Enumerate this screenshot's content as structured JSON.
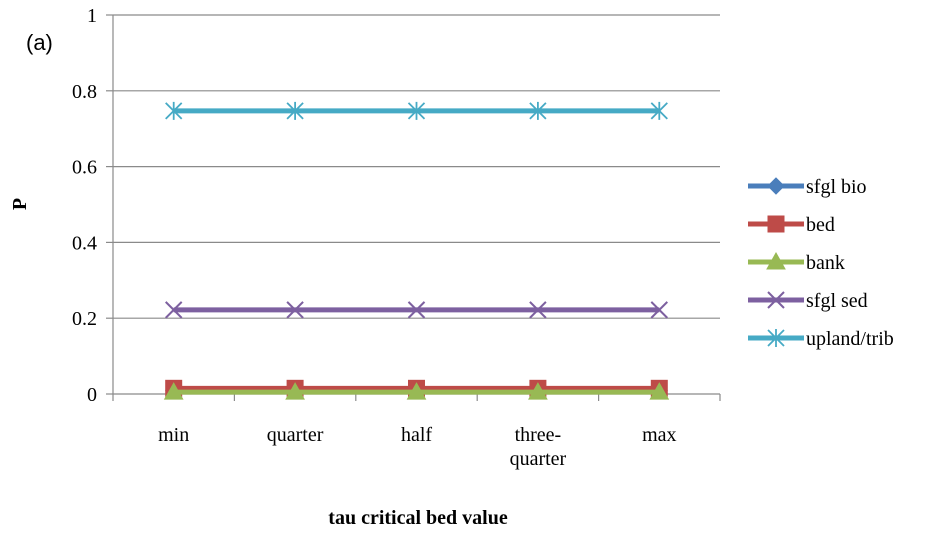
{
  "chart_data": {
    "type": "line",
    "panel_label": "(a)",
    "xlabel": "tau critical bed value",
    "ylabel": "P",
    "categories": [
      "min",
      "quarter",
      "half",
      "three-quarter",
      "max"
    ],
    "category_lines": [
      [
        "min"
      ],
      [
        "quarter"
      ],
      [
        "half"
      ],
      [
        "three-",
        "quarter"
      ],
      [
        "max"
      ]
    ],
    "ylim": [
      0,
      1
    ],
    "yticks": [
      0,
      0.2,
      0.4,
      0.6,
      0.8,
      1
    ],
    "ytick_labels": [
      "0",
      "0.2",
      "0.4",
      "0.6",
      "0.8",
      "1"
    ],
    "grid": true,
    "legend_position": "right",
    "series": [
      {
        "name": "sfgl bio",
        "values": [
          0.01,
          0.01,
          0.01,
          0.01,
          0.01
        ],
        "color": "#4a7ebb",
        "marker": "diamond"
      },
      {
        "name": "bed",
        "values": [
          0.015,
          0.015,
          0.015,
          0.015,
          0.015
        ],
        "color": "#be4b48",
        "marker": "square"
      },
      {
        "name": "bank",
        "values": [
          0.005,
          0.005,
          0.005,
          0.005,
          0.005
        ],
        "color": "#98b954",
        "marker": "triangle"
      },
      {
        "name": "sfgl sed",
        "values": [
          0.222,
          0.222,
          0.222,
          0.222,
          0.222
        ],
        "color": "#7d60a0",
        "marker": "x"
      },
      {
        "name": "upland/trib",
        "values": [
          0.747,
          0.747,
          0.747,
          0.747,
          0.747
        ],
        "color": "#46aac5",
        "marker": "star"
      }
    ]
  }
}
